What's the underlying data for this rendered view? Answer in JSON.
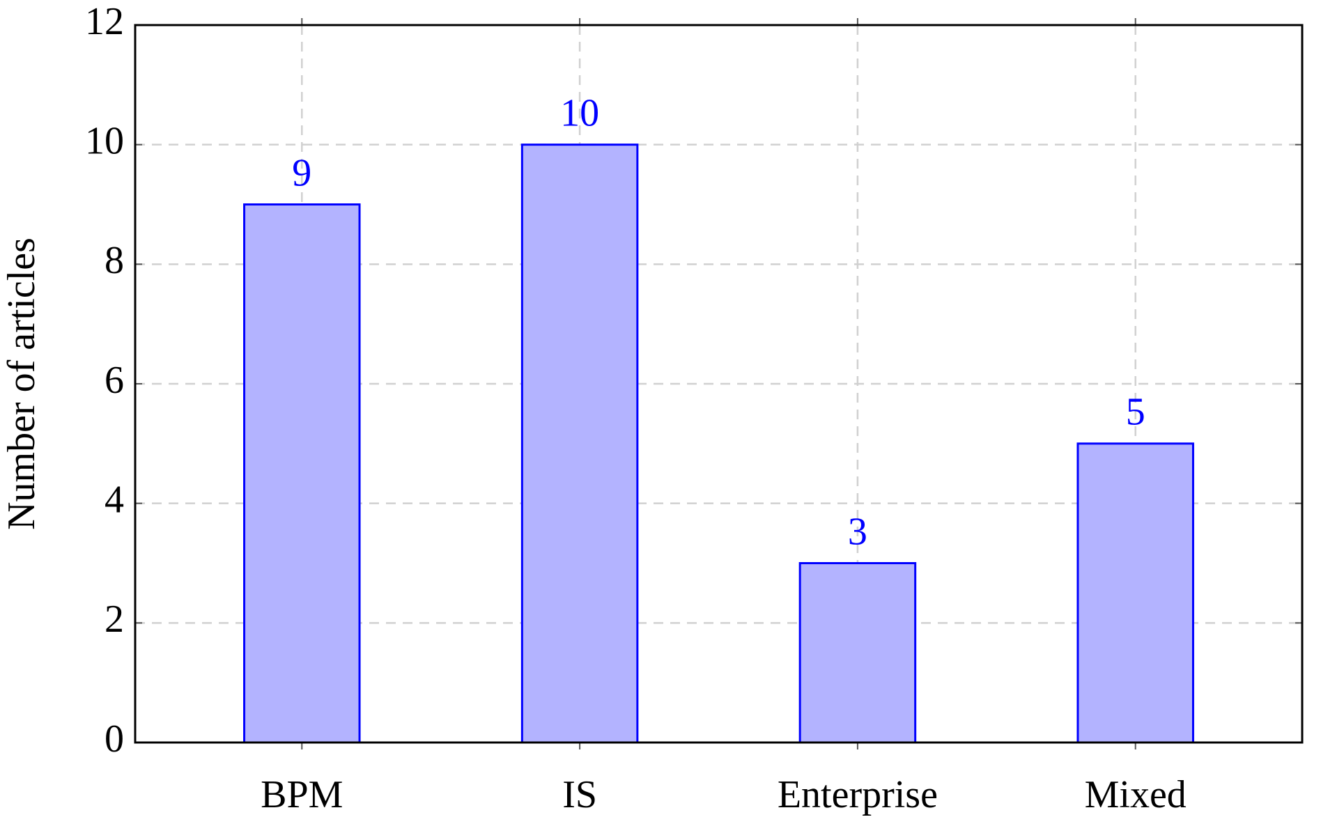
{
  "chart_data": {
    "type": "bar",
    "ylabel": "Number of articles",
    "categories": [
      "BPM",
      "IS",
      "Enterprise",
      "Mixed"
    ],
    "values": [
      9,
      10,
      3,
      5
    ],
    "color": "#b3b3ff",
    "edge_color": "#0000ff",
    "label_color": "#0000ff",
    "ylim": [
      0,
      12
    ],
    "yticks": [
      0,
      2,
      4,
      6,
      8,
      10,
      12
    ],
    "grid": true
  }
}
